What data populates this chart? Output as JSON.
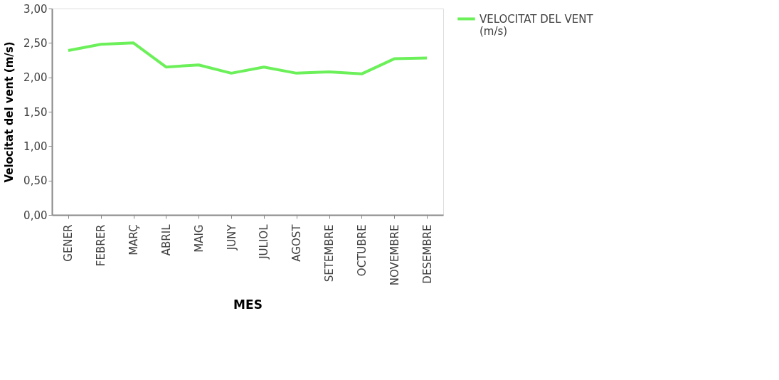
{
  "chart_data": {
    "type": "line",
    "xlabel": "MES",
    "ylabel": "Velocitat del vent (m/s)",
    "categories": [
      "GENER",
      "FEBRER",
      "MARÇ",
      "ABRIL",
      "MAIG",
      "JUNY",
      "JULIOL",
      "AGOST",
      "SETEMBRE",
      "OCTUBRE",
      "NOVEMBRE",
      "DESEMBRE"
    ],
    "series": [
      {
        "name": "VELOCITAT DEL VENT (m/s)",
        "color": "#6cf05a",
        "values": [
          2.39,
          2.48,
          2.5,
          2.15,
          2.18,
          2.06,
          2.15,
          2.06,
          2.08,
          2.05,
          2.27,
          2.28
        ]
      }
    ],
    "ylim": [
      0,
      3
    ],
    "yticks": [
      {
        "value": 0,
        "label": "0,00"
      },
      {
        "value": 0.5,
        "label": "0,50"
      },
      {
        "value": 1,
        "label": "1,00"
      },
      {
        "value": 1.5,
        "label": "1,50"
      },
      {
        "value": 2,
        "label": "2,00"
      },
      {
        "value": 2.5,
        "label": "2,50"
      },
      {
        "value": 3,
        "label": "3,00"
      }
    ],
    "grid": false,
    "legend": "right",
    "marker": "none",
    "line_style": "solid"
  }
}
